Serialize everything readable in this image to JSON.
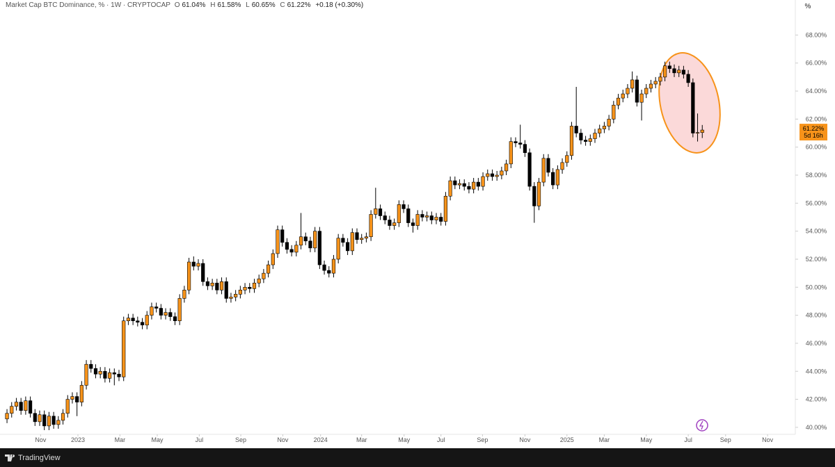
{
  "header": {
    "title": "Market Cap BTC Dominance, % · 1W · CRYPTOCAP",
    "ohlc": [
      {
        "key": "O",
        "value": "61.04%"
      },
      {
        "key": "H",
        "value": "61.58%"
      },
      {
        "key": "L",
        "value": "60.65%"
      },
      {
        "key": "C",
        "value": "61.22%"
      }
    ],
    "change": "+0.18 (+0.30%)"
  },
  "scale_button": "%",
  "footer": "TradingView",
  "chart_data": {
    "type": "candlestick",
    "open": [
      40.6,
      41.0,
      41.5,
      41.8,
      41.2,
      41.9,
      41.0,
      40.4,
      40.9,
      40.1,
      40.8,
      40.2,
      40.5,
      41.0,
      42.0,
      42.2,
      41.8,
      43.0,
      44.5,
      44.2,
      43.8,
      44.0,
      43.5,
      43.9,
      43.8,
      43.6,
      47.6,
      47.8,
      47.6,
      47.5,
      47.3,
      48.0,
      48.6,
      48.5,
      48.0,
      48.2,
      47.9,
      47.6,
      49.2,
      49.8,
      51.8,
      51.5,
      51.7,
      50.4,
      50.1,
      50.3,
      49.8,
      50.4,
      49.2,
      49.3,
      49.5,
      49.8,
      50.0,
      49.9,
      50.3,
      50.6,
      51.0,
      51.6,
      52.4,
      54.1,
      53.2,
      52.7,
      52.5,
      53.0,
      53.6,
      53.3,
      52.8,
      54.0,
      51.6,
      51.2,
      51.0,
      52.0,
      53.5,
      53.2,
      52.6,
      53.9,
      53.4,
      53.5,
      53.6,
      55.2,
      55.6,
      55.1,
      54.8,
      54.4,
      54.6,
      55.9,
      55.6,
      54.6,
      54.4,
      55.2,
      55.0,
      55.1,
      54.8,
      55.0,
      54.7,
      56.5,
      57.6,
      57.3,
      57.4,
      57.2,
      57.0,
      57.5,
      57.2,
      57.9,
      58.1,
      57.9,
      58.0,
      58.3,
      58.8,
      60.4,
      60.3,
      60.2,
      59.6,
      57.2,
      55.8,
      57.5,
      59.2,
      58.2,
      57.3,
      58.4,
      58.9,
      59.4,
      61.5,
      61.0,
      60.5,
      60.4,
      60.6,
      61.0,
      61.3,
      61.5,
      62.0,
      63.0,
      63.5,
      63.8,
      64.2,
      64.8,
      63.2,
      63.8,
      64.2,
      64.5,
      64.7,
      65.0,
      65.8,
      65.6,
      65.3,
      65.5,
      65.2,
      64.6,
      61.0,
      61.04
    ],
    "high": [
      41.3,
      41.8,
      42.1,
      42.1,
      42.2,
      42.2,
      41.3,
      41.2,
      41.2,
      41.1,
      41.1,
      40.8,
      41.3,
      42.3,
      42.5,
      42.5,
      43.3,
      44.8,
      44.8,
      44.5,
      44.3,
      44.3,
      44.2,
      44.2,
      44.1,
      47.9,
      48.1,
      48.1,
      47.9,
      47.8,
      48.3,
      48.9,
      48.9,
      48.8,
      48.5,
      48.5,
      48.2,
      49.5,
      50.1,
      52.1,
      52.2,
      52.0,
      52.0,
      50.7,
      50.6,
      50.6,
      50.7,
      50.7,
      49.6,
      49.8,
      50.1,
      50.3,
      50.3,
      50.6,
      50.9,
      51.3,
      51.9,
      52.7,
      54.4,
      54.4,
      53.5,
      53.0,
      53.3,
      55.3,
      53.9,
      53.6,
      54.3,
      54.3,
      51.9,
      51.5,
      52.3,
      53.8,
      53.8,
      53.5,
      54.2,
      54.2,
      53.8,
      53.9,
      55.5,
      57.1,
      55.9,
      55.4,
      55.1,
      54.9,
      56.2,
      56.2,
      55.9,
      54.9,
      55.5,
      55.5,
      55.4,
      55.4,
      55.3,
      55.3,
      56.8,
      57.9,
      57.9,
      57.7,
      57.7,
      57.5,
      57.8,
      57.8,
      58.2,
      58.4,
      58.4,
      58.3,
      58.6,
      59.1,
      60.7,
      60.7,
      61.6,
      60.5,
      59.9,
      57.5,
      57.8,
      59.5,
      59.5,
      58.5,
      58.7,
      59.2,
      59.7,
      61.8,
      64.3,
      61.3,
      60.8,
      60.9,
      61.3,
      61.6,
      61.8,
      62.3,
      63.3,
      63.8,
      64.1,
      64.5,
      65.4,
      65.1,
      64.1,
      64.5,
      64.8,
      65.0,
      65.3,
      66.1,
      66.1,
      65.9,
      65.8,
      65.8,
      65.5,
      64.9,
      62.4,
      61.58
    ],
    "low": [
      40.3,
      40.7,
      41.2,
      40.9,
      40.9,
      40.7,
      40.1,
      40.1,
      39.8,
      39.8,
      39.9,
      39.9,
      40.2,
      40.7,
      41.7,
      40.8,
      41.5,
      42.7,
      43.9,
      43.5,
      43.5,
      43.2,
      43.2,
      43.0,
      43.3,
      43.3,
      47.3,
      47.3,
      47.2,
      47.0,
      47.0,
      47.7,
      48.2,
      47.7,
      47.7,
      47.6,
      47.3,
      47.3,
      48.9,
      49.5,
      51.2,
      51.2,
      50.1,
      49.8,
      49.8,
      49.5,
      49.5,
      48.9,
      48.9,
      49.0,
      49.2,
      49.5,
      49.6,
      49.6,
      50.0,
      50.3,
      50.7,
      51.3,
      52.1,
      52.9,
      52.4,
      52.2,
      52.2,
      52.7,
      53.0,
      52.5,
      52.5,
      51.3,
      50.9,
      50.7,
      50.7,
      51.7,
      52.9,
      52.3,
      52.3,
      53.1,
      53.1,
      53.2,
      53.3,
      54.9,
      54.8,
      54.5,
      54.1,
      54.1,
      54.3,
      55.3,
      54.3,
      53.9,
      54.1,
      54.7,
      54.7,
      54.5,
      54.5,
      54.4,
      54.4,
      56.2,
      57.0,
      57.0,
      56.9,
      56.7,
      56.7,
      56.9,
      56.9,
      57.6,
      57.6,
      57.6,
      57.7,
      58.0,
      58.5,
      60.0,
      59.9,
      59.3,
      56.9,
      54.6,
      55.5,
      57.2,
      57.9,
      57.0,
      57.0,
      58.1,
      58.6,
      59.1,
      60.7,
      60.2,
      60.1,
      60.1,
      60.3,
      60.7,
      61.0,
      61.2,
      61.7,
      62.7,
      63.2,
      63.5,
      63.9,
      62.9,
      61.9,
      63.5,
      63.9,
      64.2,
      64.4,
      64.7,
      65.3,
      65.0,
      65.0,
      64.9,
      64.3,
      60.7,
      60.4,
      60.65
    ],
    "close": [
      41.0,
      41.5,
      41.8,
      41.2,
      41.9,
      41.0,
      40.4,
      40.9,
      40.1,
      40.8,
      40.2,
      40.5,
      41.0,
      42.0,
      42.2,
      41.8,
      43.0,
      44.5,
      44.2,
      43.8,
      44.0,
      43.5,
      43.9,
      43.8,
      43.6,
      47.6,
      47.8,
      47.6,
      47.5,
      47.3,
      48.0,
      48.6,
      48.5,
      48.0,
      48.2,
      47.9,
      47.6,
      49.2,
      49.8,
      51.8,
      51.5,
      51.7,
      50.4,
      50.1,
      50.3,
      49.8,
      50.4,
      49.2,
      49.3,
      49.5,
      49.8,
      50.0,
      49.9,
      50.3,
      50.6,
      51.0,
      51.6,
      52.4,
      54.1,
      53.2,
      52.7,
      52.5,
      53.0,
      53.6,
      53.3,
      52.8,
      54.0,
      51.6,
      51.2,
      51.0,
      52.0,
      53.5,
      53.2,
      52.6,
      53.9,
      53.4,
      53.5,
      53.6,
      55.2,
      55.6,
      55.1,
      54.8,
      54.4,
      54.6,
      55.9,
      55.6,
      54.6,
      54.4,
      55.2,
      55.0,
      55.1,
      54.8,
      55.0,
      54.7,
      56.5,
      57.6,
      57.3,
      57.4,
      57.2,
      57.0,
      57.5,
      57.2,
      57.9,
      58.1,
      57.9,
      58.0,
      58.3,
      58.8,
      60.4,
      60.3,
      60.2,
      59.6,
      57.2,
      55.8,
      57.5,
      59.2,
      58.2,
      57.3,
      58.4,
      58.9,
      59.4,
      61.5,
      61.0,
      60.5,
      60.4,
      60.6,
      61.0,
      61.3,
      61.5,
      62.0,
      63.0,
      63.5,
      63.8,
      64.2,
      64.8,
      63.2,
      63.8,
      64.2,
      64.5,
      64.7,
      65.0,
      65.8,
      65.6,
      65.3,
      65.5,
      65.2,
      64.6,
      61.0,
      61.04,
      61.22
    ],
    "up_color": "#f7931a",
    "down_color": "#000000",
    "ylim": [
      39.5,
      70.5
    ],
    "yticks": [
      {
        "value": 40,
        "label": "40.00%"
      },
      {
        "value": 42,
        "label": "42.00%"
      },
      {
        "value": 44,
        "label": "44.00%"
      },
      {
        "value": 46,
        "label": "46.00%"
      },
      {
        "value": 48,
        "label": "48.00%"
      },
      {
        "value": 50,
        "label": "50.00%"
      },
      {
        "value": 52,
        "label": "52.00%"
      },
      {
        "value": 54,
        "label": "54.00%"
      },
      {
        "value": 56,
        "label": "56.00%"
      },
      {
        "value": 58,
        "label": "58.00%"
      },
      {
        "value": 60,
        "label": "60.00%"
      },
      {
        "value": 62,
        "label": "62.00%"
      },
      {
        "value": 64,
        "label": "64.00%"
      },
      {
        "value": 66,
        "label": "66.00%"
      },
      {
        "value": 68,
        "label": "68.00%"
      }
    ],
    "xlim": [
      -1.5,
      168.5
    ],
    "xticks": [
      {
        "value": 7.2,
        "label": "Nov"
      },
      {
        "value": 15.2,
        "label": "2023"
      },
      {
        "value": 24.2,
        "label": "Mar"
      },
      {
        "value": 32.2,
        "label": "May"
      },
      {
        "value": 41.2,
        "label": "Jul"
      },
      {
        "value": 50.1,
        "label": "Sep"
      },
      {
        "value": 59.1,
        "label": "Nov"
      },
      {
        "value": 67.2,
        "label": "2024"
      },
      {
        "value": 76,
        "label": "Mar"
      },
      {
        "value": 85.1,
        "label": "May"
      },
      {
        "value": 93,
        "label": "Jul"
      },
      {
        "value": 101.9,
        "label": "Sep"
      },
      {
        "value": 111,
        "label": "Nov"
      },
      {
        "value": 120,
        "label": "2025"
      },
      {
        "value": 128,
        "label": "Mar"
      },
      {
        "value": 137,
        "label": "May"
      },
      {
        "value": 146,
        "label": "Jul"
      },
      {
        "value": 154,
        "label": "Sep"
      },
      {
        "value": 163,
        "label": "Nov"
      }
    ],
    "last_label": "61.22%",
    "countdown": "5d 16h"
  }
}
